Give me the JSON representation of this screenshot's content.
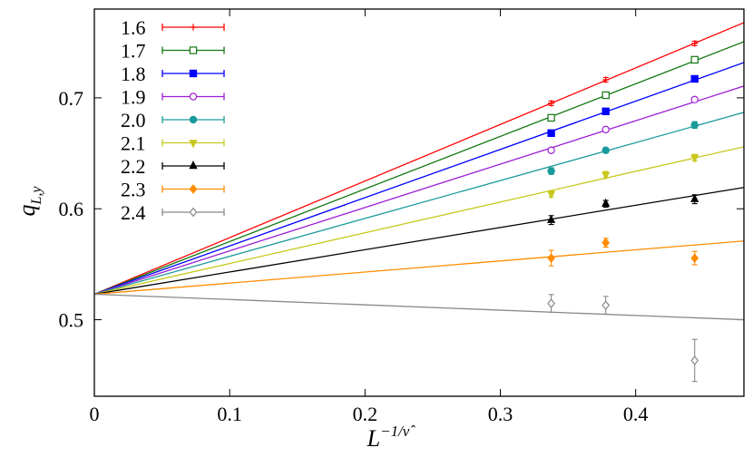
{
  "chart_data": {
    "type": "scatter",
    "xlabel": "L",
    "xlabel_sup": "−1/ν̂",
    "ylabel": "q",
    "ylabel_sub": "L,y",
    "xlim": [
      0,
      0.48
    ],
    "ylim": [
      0.431,
      0.78
    ],
    "xticks": [
      0,
      0.1,
      0.2,
      0.3,
      0.4
    ],
    "yticks": [
      0.5,
      0.6,
      0.7
    ],
    "legend": "upper left",
    "x": [
      0.3376,
      0.3779,
      0.4436
    ],
    "fit_x": [
      0,
      0.48
    ],
    "series": [
      {
        "name": "1.6",
        "color": "#ff0000",
        "marker": "plus",
        "values": [
          0.6951,
          0.7163,
          0.749
        ],
        "errors": [
          0.002,
          0.002,
          0.002
        ],
        "fit": [
          0.523,
          0.7678
        ]
      },
      {
        "name": "1.7",
        "color": "#117711",
        "marker": "square-open",
        "values": [
          0.682,
          0.7024,
          0.7343
        ],
        "errors": [
          0.002,
          0.002,
          0.002
        ],
        "fit": [
          0.523,
          0.7506
        ]
      },
      {
        "name": "1.8",
        "color": "#0000ff",
        "marker": "square",
        "values": [
          0.6682,
          0.6878,
          0.7171
        ],
        "errors": [
          0.002,
          0.002,
          0.002
        ],
        "fit": [
          0.523,
          0.7318
        ]
      },
      {
        "name": "1.9",
        "color": "#9b1fd6",
        "marker": "circle-open",
        "values": [
          0.6527,
          0.6714,
          0.6984
        ],
        "errors": [
          0.002,
          0.002,
          0.002
        ],
        "fit": [
          0.523,
          0.7106
        ]
      },
      {
        "name": "2.0",
        "color": "#1a9a9a",
        "marker": "circle",
        "values": [
          0.634,
          0.6527,
          0.6755
        ],
        "errors": [
          0.003,
          0.002,
          0.003
        ],
        "fit": [
          0.523,
          0.6869
        ]
      },
      {
        "name": "2.1",
        "color": "#c8c81e",
        "marker": "triangle-down",
        "values": [
          0.6135,
          0.6307,
          0.6461
        ],
        "errors": [
          0.003,
          0.003,
          0.003
        ],
        "fit": [
          0.523,
          0.6559
        ]
      },
      {
        "name": "2.2",
        "color": "#000000",
        "marker": "triangle-up",
        "values": [
          0.5898,
          0.6045,
          0.6086
        ],
        "errors": [
          0.004,
          0.003,
          0.004
        ],
        "fit": [
          0.523,
          0.6192
        ]
      },
      {
        "name": "2.3",
        "color": "#ff8c00",
        "marker": "diamond",
        "values": [
          0.5555,
          0.5694,
          0.5555
        ],
        "errors": [
          0.007,
          0.004,
          0.006
        ],
        "fit": [
          0.523,
          0.571
        ]
      },
      {
        "name": "2.4",
        "color": "#888888",
        "marker": "diamond-open",
        "values": [
          0.5147,
          0.513,
          0.4633
        ],
        "errors": [
          0.008,
          0.008,
          0.019
        ],
        "fit": [
          0.523,
          0.5
        ]
      }
    ]
  }
}
